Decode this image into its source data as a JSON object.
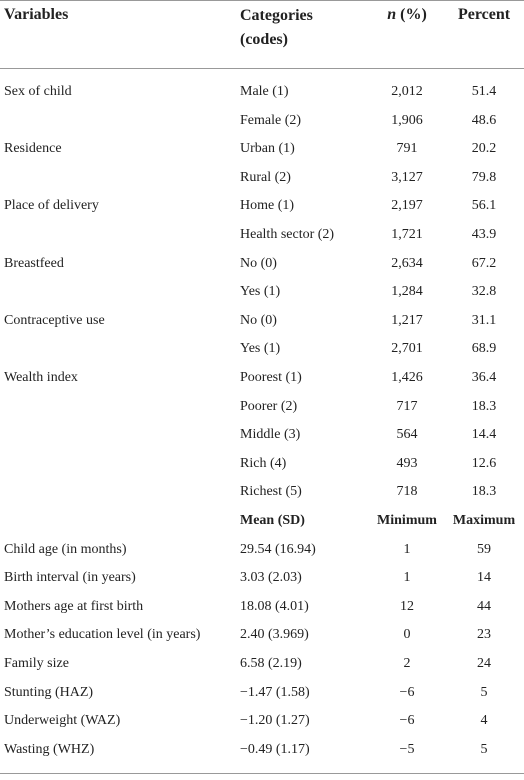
{
  "header": {
    "variables": "Variables",
    "categories": "Categories (codes)",
    "n": "n",
    "n_suffix": "(%)",
    "percent": "Percent"
  },
  "categorical_rows": [
    {
      "variable": "Sex of child",
      "category": "Male (1)",
      "n": "2,012",
      "percent": "51.4"
    },
    {
      "category": "Female (2)",
      "n": "1,906",
      "percent": "48.6"
    },
    {
      "variable": "Residence",
      "category": "Urban (1)",
      "n": "791",
      "percent": "20.2"
    },
    {
      "category": "Rural (2)",
      "n": "3,127",
      "percent": "79.8"
    },
    {
      "variable": "Place of delivery",
      "category": "Home (1)",
      "n": "2,197",
      "percent": "56.1"
    },
    {
      "category": "Health sector (2)",
      "n": "1,721",
      "percent": "43.9"
    },
    {
      "variable": "Breastfeed",
      "category": "No (0)",
      "n": "2,634",
      "percent": "67.2"
    },
    {
      "category": "Yes (1)",
      "n": "1,284",
      "percent": "32.8"
    },
    {
      "variable": "Contraceptive use",
      "category": "No (0)",
      "n": "1,217",
      "percent": "31.1"
    },
    {
      "category": "Yes (1)",
      "n": "2,701",
      "percent": "68.9"
    },
    {
      "variable": "Wealth index",
      "category": "Poorest (1)",
      "n": "1,426",
      "percent": "36.4"
    },
    {
      "category": "Poorer (2)",
      "n": "717",
      "percent": "18.3"
    },
    {
      "category": "Middle (3)",
      "n": "564",
      "percent": "14.4"
    },
    {
      "category": "Rich (4)",
      "n": "493",
      "percent": "12.6"
    },
    {
      "category": "Richest (5)",
      "n": "718",
      "percent": "18.3"
    }
  ],
  "subheader": {
    "category": "Mean (SD)",
    "n": "Minimum",
    "percent": "Maximum"
  },
  "continuous_rows": [
    {
      "variable": "Child age (in months)",
      "category": "29.54 (16.94)",
      "n": "1",
      "percent": "59"
    },
    {
      "variable": "Birth interval (in years)",
      "category": "3.03 (2.03)",
      "n": "1",
      "percent": "14"
    },
    {
      "variable": "Mothers age at first birth",
      "category": "18.08 (4.01)",
      "n": "12",
      "percent": "44"
    },
    {
      "variable": "Mother’s education level (in years)",
      "category": "2.40 (3.969)",
      "n": "0",
      "percent": "23"
    },
    {
      "variable": "Family size",
      "category": "6.58 (2.19)",
      "n": "2",
      "percent": "24"
    },
    {
      "variable": "Stunting (HAZ)",
      "category": "−1.47 (1.58)",
      "n": "−6",
      "percent": "5"
    },
    {
      "variable": "Underweight (WAZ)",
      "category": "−1.20 (1.27)",
      "n": "−6",
      "percent": "4"
    },
    {
      "variable": "Wasting (WHZ)",
      "category": "−0.49 (1.17)",
      "n": "−5",
      "percent": "5"
    }
  ]
}
